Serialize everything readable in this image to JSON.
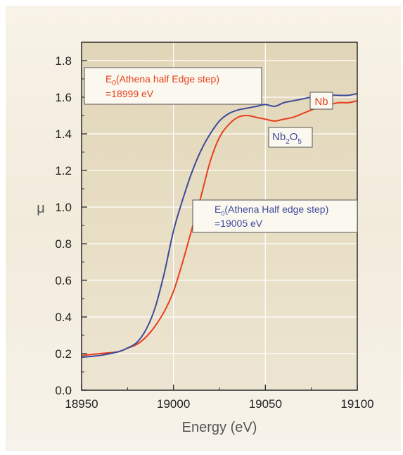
{
  "chart_data": {
    "type": "line",
    "title": "",
    "xlabel": "Energy (eV)",
    "ylabel": "μ",
    "xlim": [
      18950,
      19100
    ],
    "ylim": [
      0.0,
      1.9
    ],
    "xticks": [
      "18950",
      "19000",
      "19050",
      "19100"
    ],
    "yticks": [
      "0.0",
      "0.2",
      "0.4",
      "0.6",
      "0.8",
      "1.0",
      "1.2",
      "1.4",
      "1.6",
      "1.8"
    ],
    "grid": true,
    "series": [
      {
        "name": "Nb",
        "color": "#e8401c",
        "x": [
          18950,
          18960,
          18970,
          18975,
          18980,
          18985,
          18990,
          18995,
          19000,
          19005,
          19010,
          19015,
          19020,
          19025,
          19030,
          19035,
          19040,
          19045,
          19050,
          19055,
          19060,
          19065,
          19070,
          19075,
          19080,
          19085,
          19090,
          19095,
          19100
        ],
        "y": [
          0.19,
          0.2,
          0.21,
          0.23,
          0.25,
          0.29,
          0.35,
          0.43,
          0.54,
          0.7,
          0.88,
          1.06,
          1.25,
          1.38,
          1.45,
          1.49,
          1.5,
          1.49,
          1.48,
          1.47,
          1.48,
          1.49,
          1.51,
          1.53,
          1.55,
          1.56,
          1.57,
          1.57,
          1.58
        ]
      },
      {
        "name": "Nb2O5",
        "color": "#3e4a9c",
        "x": [
          18950,
          18960,
          18970,
          18975,
          18980,
          18985,
          18990,
          18995,
          19000,
          19005,
          19010,
          19015,
          19020,
          19025,
          19030,
          19035,
          19040,
          19045,
          19050,
          19055,
          19060,
          19065,
          19070,
          19075,
          19080,
          19085,
          19090,
          19095,
          19100
        ],
        "y": [
          0.18,
          0.19,
          0.21,
          0.23,
          0.26,
          0.33,
          0.45,
          0.64,
          0.87,
          1.04,
          1.19,
          1.31,
          1.4,
          1.47,
          1.51,
          1.53,
          1.54,
          1.55,
          1.56,
          1.55,
          1.57,
          1.58,
          1.59,
          1.6,
          1.6,
          1.61,
          1.61,
          1.61,
          1.62
        ]
      }
    ],
    "legend": [
      {
        "sub": false,
        "parts": [
          "Nb"
        ],
        "color": "#e8401c",
        "position": "top-right"
      },
      {
        "sub": true,
        "parts": [
          "Nb",
          "2",
          "O",
          "5",
          ""
        ],
        "color": "#3e4a9c",
        "position": "upper-right"
      }
    ],
    "annotations": [
      {
        "line1_main": "E",
        "line1_sub": "0",
        "line1_rest": "(Athena half Edge step)",
        "line2": "=18999 eV",
        "color": "#e8401c"
      },
      {
        "line1_main": "E",
        "line1_sub": "0",
        "line1_rest": "(Athena Half edge step)",
        "line2": "=19005 eV",
        "color": "#3e4a9c"
      }
    ],
    "colors": {
      "plot_bg": "#e6dcc2",
      "frame_bg": "#f6f2e8",
      "grid": "#ffffff"
    }
  }
}
